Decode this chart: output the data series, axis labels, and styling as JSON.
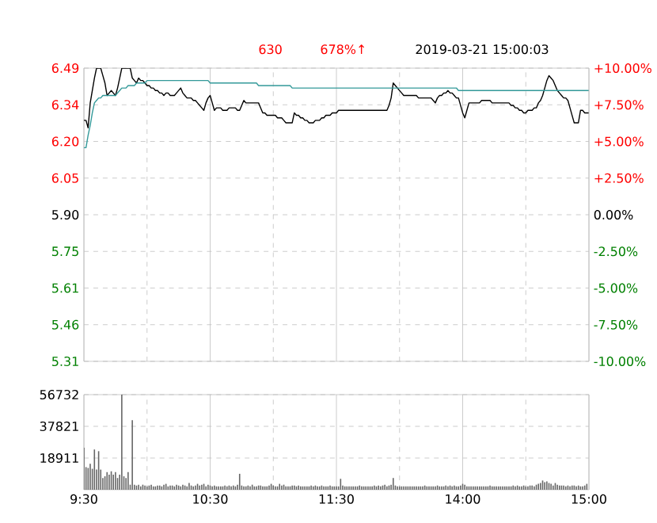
{
  "chart_data": [
    {
      "type": "line",
      "annotations": [
        "630",
        "678%↑",
        "2019-03-21 15:00:03"
      ],
      "categories": [
        null,
        null,
        null,
        null,
        null,
        null,
        null,
        null,
        null,
        null,
        null,
        null,
        null,
        null,
        null,
        null,
        null,
        null,
        null,
        null,
        null,
        null,
        null,
        null,
        null,
        null,
        null,
        null,
        null,
        null,
        null,
        null,
        null,
        null,
        null,
        null,
        null,
        null,
        null,
        null,
        null,
        null,
        null,
        null,
        null,
        null,
        null,
        null,
        null,
        null,
        null,
        null,
        null,
        null,
        null,
        null,
        null,
        null,
        null,
        null,
        null,
        null,
        null,
        null,
        null,
        null,
        null,
        null,
        null,
        null,
        null,
        null,
        null,
        null,
        null,
        null,
        null,
        null,
        null,
        null,
        null,
        null,
        null,
        null,
        null,
        null,
        null,
        null,
        null,
        null,
        null,
        null,
        null,
        null,
        null,
        null,
        null,
        null,
        null,
        null,
        null,
        null,
        null,
        null,
        null,
        null,
        null,
        null,
        null,
        null,
        null,
        null,
        null,
        null,
        null,
        null,
        null,
        null,
        null,
        null,
        null,
        null,
        null,
        null,
        null,
        null,
        null,
        null,
        null,
        null,
        null,
        null,
        null,
        null,
        null,
        null,
        null,
        null,
        null,
        null,
        null,
        null,
        null,
        null,
        null,
        null,
        null,
        null,
        null,
        null,
        null,
        null,
        null,
        null,
        null,
        null,
        null,
        null,
        null,
        null,
        null,
        null,
        null,
        null,
        null,
        null,
        null,
        null,
        null,
        null,
        null,
        null,
        null,
        null,
        null,
        null,
        null,
        null,
        null,
        null,
        null,
        null,
        null,
        null,
        null,
        null,
        null,
        null,
        null,
        null,
        null,
        null,
        null,
        null,
        null,
        null,
        null,
        null,
        null,
        null,
        null,
        null,
        null,
        null,
        null,
        null,
        null,
        null,
        null,
        null,
        null,
        null,
        null,
        null,
        null,
        null,
        null,
        null,
        null,
        null,
        null,
        null,
        null,
        null,
        null,
        null,
        null,
        null,
        null,
        null,
        null,
        null,
        null,
        null,
        null,
        null,
        null,
        null,
        null,
        null,
        null
      ],
      "ylim": [
        5.31,
        6.49
      ],
      "yticks": [
        {
          "value": 6.49,
          "label": "6.49"
        },
        {
          "value": 6.3425,
          "label": "6.34"
        },
        {
          "value": 6.195,
          "label": "6.20"
        },
        {
          "value": 6.0475,
          "label": "6.05"
        },
        {
          "value": 5.9,
          "label": "5.90"
        },
        {
          "value": 5.7525,
          "label": "5.75"
        },
        {
          "value": 5.605,
          "label": "5.61"
        },
        {
          "value": 5.4575,
          "label": "5.46"
        },
        {
          "value": 5.31,
          "label": "5.31"
        }
      ],
      "y2lim": [
        -10,
        10
      ],
      "y2ticks": [
        {
          "value": 10,
          "label": "+10.00%"
        },
        {
          "value": 7.5,
          "label": "+7.50%"
        },
        {
          "value": 5,
          "label": "+5.00%"
        },
        {
          "value": 2.5,
          "label": "+2.50%"
        },
        {
          "value": 0,
          "label": "0.00%"
        },
        {
          "value": -2.5,
          "label": "-2.50%"
        },
        {
          "value": -5,
          "label": "-5.00%"
        },
        {
          "value": -7.5,
          "label": "-7.50%"
        },
        {
          "value": -10,
          "label": "-10.00%"
        }
      ],
      "tick_labels": "y",
      "grid": true,
      "series": [
        {
          "color": "#000000",
          "values": [
            6.28,
            6.28,
            6.25,
            6.35,
            6.4,
            6.45,
            6.49,
            6.49,
            6.49,
            6.46,
            6.43,
            6.38,
            6.39,
            6.4,
            6.39,
            6.38,
            6.41,
            6.45,
            6.49,
            6.49,
            6.49,
            6.49,
            6.49,
            6.45,
            6.44,
            6.43,
            6.45,
            6.44,
            6.44,
            6.43,
            6.42,
            6.42,
            6.41,
            6.41,
            6.4,
            6.4,
            6.39,
            6.39,
            6.38,
            6.39,
            6.39,
            6.38,
            6.38,
            6.38,
            6.39,
            6.4,
            6.41,
            6.39,
            6.38,
            6.37,
            6.37,
            6.37,
            6.36,
            6.36,
            6.35,
            6.34,
            6.33,
            6.32,
            6.35,
            6.37,
            6.38,
            6.35,
            6.32,
            6.33,
            6.33,
            6.33,
            6.32,
            6.32,
            6.32,
            6.33,
            6.33,
            6.33,
            6.33,
            6.32,
            6.32,
            6.34,
            6.36,
            6.35,
            6.35,
            6.35,
            6.35,
            6.35,
            6.35,
            6.35,
            6.33,
            6.31,
            6.31,
            6.3,
            6.3,
            6.3,
            6.3,
            6.3,
            6.29,
            6.29,
            6.29,
            6.28,
            6.27,
            6.27,
            6.27,
            6.27,
            6.31,
            6.3,
            6.3,
            6.29,
            6.29,
            6.28,
            6.28,
            6.27,
            6.27,
            6.27,
            6.28,
            6.28,
            6.28,
            6.29,
            6.29,
            6.3,
            6.3,
            6.3,
            6.31,
            6.31,
            6.31,
            6.32,
            6.32,
            6.32,
            6.32,
            6.32,
            6.32,
            6.32,
            6.32,
            6.32,
            6.32,
            6.32,
            6.32,
            6.32,
            6.32,
            6.32,
            6.32,
            6.32,
            6.32,
            6.32,
            6.32,
            6.32,
            6.32,
            6.32,
            6.32,
            6.34,
            6.37,
            6.43,
            6.42,
            6.41,
            6.4,
            6.39,
            6.38,
            6.38,
            6.38,
            6.38,
            6.38,
            6.38,
            6.38,
            6.37,
            6.37,
            6.37,
            6.37,
            6.37,
            6.37,
            6.37,
            6.36,
            6.35,
            6.37,
            6.38,
            6.38,
            6.39,
            6.39,
            6.4,
            6.39,
            6.39,
            6.38,
            6.37,
            6.37,
            6.34,
            6.31,
            6.29,
            6.32,
            6.35,
            6.35,
            6.35,
            6.35,
            6.35,
            6.35,
            6.36,
            6.36,
            6.36,
            6.36,
            6.36,
            6.35,
            6.35,
            6.35,
            6.35,
            6.35,
            6.35,
            6.35,
            6.35,
            6.35,
            6.34,
            6.34,
            6.33,
            6.33,
            6.32,
            6.32,
            6.31,
            6.31,
            6.32,
            6.32,
            6.32,
            6.33,
            6.33,
            6.35,
            6.36,
            6.38,
            6.41,
            6.44,
            6.46,
            6.45,
            6.44,
            6.42,
            6.4,
            6.39,
            6.38,
            6.37,
            6.37,
            6.36,
            6.33,
            6.3,
            6.27,
            6.27,
            6.27,
            6.32,
            6.32,
            6.31,
            6.31,
            6.31
          ]
        },
        {
          "color": "#339999",
          "values": [
            6.17,
            6.17,
            6.22,
            6.26,
            6.31,
            6.35,
            6.36,
            6.37,
            6.37,
            6.38,
            6.38,
            6.38,
            6.38,
            6.38,
            6.38,
            6.38,
            6.39,
            6.4,
            6.41,
            6.41,
            6.41,
            6.42,
            6.42,
            6.42,
            6.42,
            6.43,
            6.43,
            6.43,
            6.43,
            6.43,
            6.44,
            6.44,
            6.44,
            6.44,
            6.44,
            6.44,
            6.44,
            6.44,
            6.44,
            6.44,
            6.44,
            6.44,
            6.44,
            6.44,
            6.44,
            6.44,
            6.44,
            6.44,
            6.44,
            6.44,
            6.44,
            6.44,
            6.44,
            6.44,
            6.44,
            6.44,
            6.44,
            6.44,
            6.44,
            6.44,
            6.43,
            6.43,
            6.43,
            6.43,
            6.43,
            6.43,
            6.43,
            6.43,
            6.43,
            6.43,
            6.43,
            6.43,
            6.43,
            6.43,
            6.43,
            6.43,
            6.43,
            6.43,
            6.43,
            6.43,
            6.43,
            6.43,
            6.43,
            6.42,
            6.42,
            6.42,
            6.42,
            6.42,
            6.42,
            6.42,
            6.42,
            6.42,
            6.42,
            6.42,
            6.42,
            6.42,
            6.42,
            6.42,
            6.42,
            6.41,
            6.41,
            6.41,
            6.41,
            6.41,
            6.41,
            6.41,
            6.41,
            6.41,
            6.41,
            6.41,
            6.41,
            6.41,
            6.41,
            6.41,
            6.41,
            6.41,
            6.41,
            6.41,
            6.41,
            6.41,
            6.41,
            6.41,
            6.41,
            6.41,
            6.41,
            6.41,
            6.41,
            6.41,
            6.41,
            6.41,
            6.41,
            6.41,
            6.41,
            6.41,
            6.41,
            6.41,
            6.41,
            6.41,
            6.41,
            6.41,
            6.41,
            6.41,
            6.41,
            6.41,
            6.41,
            6.41,
            6.41,
            6.41,
            6.41,
            6.41,
            6.41,
            6.41,
            6.41,
            6.41,
            6.41,
            6.41,
            6.41,
            6.41,
            6.41,
            6.41,
            6.41,
            6.41,
            6.41,
            6.41,
            6.41,
            6.41,
            6.41,
            6.41,
            6.41,
            6.41,
            6.41,
            6.41,
            6.41,
            6.41,
            6.41,
            6.41,
            6.41,
            6.41,
            6.4,
            6.4,
            6.4,
            6.4,
            6.4,
            6.4,
            6.4,
            6.4,
            6.4,
            6.4,
            6.4,
            6.4,
            6.4,
            6.4,
            6.4,
            6.4,
            6.4,
            6.4,
            6.4,
            6.4,
            6.4,
            6.4,
            6.4,
            6.4,
            6.4,
            6.4,
            6.4,
            6.4,
            6.4,
            6.4,
            6.4,
            6.4,
            6.4,
            6.4,
            6.4,
            6.4,
            6.4,
            6.4,
            6.4,
            6.4,
            6.4,
            6.4,
            6.4,
            6.4,
            6.4,
            6.4,
            6.4,
            6.4,
            6.4,
            6.4,
            6.4,
            6.4,
            6.4,
            6.4,
            6.4,
            6.4,
            6.4,
            6.4,
            6.4,
            6.4,
            6.4,
            6.4,
            6.4
          ]
        }
      ]
    },
    {
      "type": "bar",
      "categories": [
        "9:30",
        null,
        null,
        null,
        null,
        null,
        null,
        null,
        null,
        null,
        null,
        null,
        null,
        null,
        null,
        null,
        null,
        null,
        null,
        null,
        null,
        null,
        null,
        null,
        null,
        null,
        null,
        null,
        null,
        null,
        null,
        null,
        null,
        null,
        null,
        null,
        null,
        null,
        null,
        null,
        null,
        null,
        null,
        null,
        null,
        null,
        null,
        null,
        null,
        null,
        null,
        null,
        null,
        null,
        null,
        null,
        null,
        null,
        null,
        null,
        "10:30",
        null,
        null,
        null,
        null,
        null,
        null,
        null,
        null,
        null,
        null,
        null,
        null,
        null,
        null,
        null,
        null,
        null,
        null,
        null,
        null,
        null,
        null,
        null,
        null,
        null,
        null,
        null,
        null,
        null,
        null,
        null,
        null,
        null,
        null,
        null,
        null,
        null,
        null,
        null,
        null,
        null,
        null,
        null,
        null,
        null,
        null,
        null,
        null,
        null,
        null,
        null,
        null,
        null,
        null,
        null,
        null,
        null,
        null,
        null,
        "11:30",
        null,
        null,
        null,
        null,
        null,
        null,
        null,
        null,
        null,
        null,
        null,
        null,
        null,
        null,
        null,
        null,
        null,
        null,
        null,
        null,
        null,
        null,
        null,
        null,
        null,
        null,
        null,
        null,
        null,
        null,
        null,
        null,
        null,
        null,
        null,
        null,
        null,
        null,
        null,
        null,
        null,
        null,
        null,
        null,
        null,
        null,
        null,
        null,
        null,
        null,
        null,
        null,
        null,
        null,
        null,
        null,
        null,
        null,
        null,
        "14:00",
        null,
        null,
        null,
        null,
        null,
        null,
        null,
        null,
        null,
        null,
        null,
        null,
        null,
        null,
        null,
        null,
        null,
        null,
        null,
        null,
        null,
        null,
        null,
        null,
        null,
        null,
        null,
        null,
        null,
        null,
        null,
        null,
        null,
        null,
        null,
        null,
        null,
        null,
        null,
        null,
        null,
        null,
        null,
        null,
        null,
        null,
        null,
        null,
        null,
        null,
        null,
        null,
        null,
        null,
        null,
        null,
        null,
        null,
        null,
        "15:00"
      ],
      "ylim": [
        0,
        56732
      ],
      "yticks": [
        18911,
        37821,
        56732
      ],
      "grid": true,
      "series": [
        {
          "color": "#666666",
          "values": [
            25000,
            13500,
            13000,
            15500,
            12500,
            24000,
            12000,
            23000,
            12000,
            7000,
            8000,
            10500,
            9000,
            11000,
            9000,
            10500,
            7000,
            9000,
            56732,
            8000,
            7000,
            10500,
            3000,
            41500,
            3000,
            2500,
            3000,
            2000,
            3000,
            2500,
            2000,
            2500,
            3000,
            2000,
            2000,
            2500,
            2500,
            2000,
            3000,
            3500,
            2000,
            2500,
            2500,
            2000,
            3000,
            2500,
            2000,
            3000,
            2500,
            2000,
            4000,
            2500,
            2000,
            2500,
            3500,
            2500,
            3000,
            3500,
            2000,
            3000,
            2500,
            2000,
            2500,
            2000,
            2000,
            2000,
            2000,
            2500,
            2000,
            2500,
            2000,
            2500,
            2000,
            3000,
            9500,
            2500,
            2000,
            2000,
            2500,
            2000,
            3000,
            2000,
            2000,
            2500,
            2500,
            2000,
            2000,
            2000,
            2500,
            3500,
            2500,
            2000,
            2000,
            3500,
            2500,
            3000,
            2000,
            2000,
            2000,
            2500,
            2500,
            2000,
            2500,
            2000,
            2000,
            2000,
            2000,
            2000,
            2500,
            2000,
            2500,
            2000,
            2000,
            2500,
            2000,
            2000,
            2000,
            2500,
            2000,
            2000,
            2000,
            2000,
            6500,
            2500,
            2000,
            2000,
            2000,
            2000,
            2000,
            2000,
            2000,
            2500,
            2000,
            2000,
            2000,
            2000,
            2000,
            2000,
            2500,
            2000,
            2500,
            2000,
            2500,
            3000,
            2000,
            2500,
            3000,
            7000,
            2500,
            2000,
            2000,
            2000,
            2000,
            2000,
            2000,
            2000,
            2000,
            2000,
            2000,
            2000,
            2000,
            2000,
            2500,
            2000,
            2000,
            2000,
            2000,
            2000,
            2500,
            2000,
            2000,
            2000,
            2500,
            2000,
            2500,
            2000,
            2500,
            2000,
            2000,
            2500,
            3500,
            3000,
            2000,
            2000,
            2000,
            2000,
            2000,
            2000,
            2000,
            2000,
            2000,
            2000,
            2000,
            2500,
            2000,
            2000,
            2000,
            2000,
            2000,
            2000,
            2000,
            2000,
            2000,
            2000,
            2500,
            2000,
            2500,
            2000,
            2000,
            2500,
            2000,
            2000,
            2500,
            2500,
            2000,
            3000,
            3500,
            4000,
            5500,
            4500,
            5000,
            4000,
            3500,
            2500,
            4000,
            3000,
            2500,
            2500,
            2500,
            2000,
            2500,
            2000,
            2500,
            2500,
            2000,
            2500,
            2000,
            2000,
            2500,
            3500,
            null
          ]
        }
      ]
    }
  ]
}
